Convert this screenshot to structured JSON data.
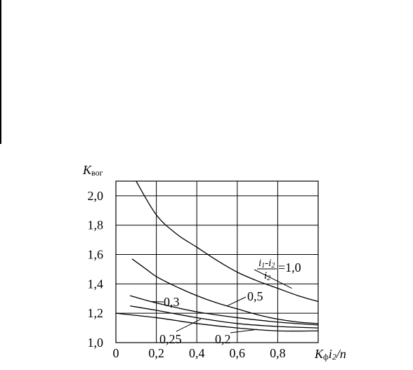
{
  "chart_data": {
    "type": "line",
    "ylabel_main": "K",
    "ylabel_sub": "вог",
    "xlabel": "Kфi2/n",
    "xlim": [
      0,
      1.0
    ],
    "ylim": [
      1.0,
      2.1
    ],
    "x_ticks": [
      0,
      0.2,
      0.4,
      0.6,
      0.8
    ],
    "x_tick_labels": [
      "0",
      "0,2",
      "0,4",
      "0,6",
      "0,8"
    ],
    "y_ticks": [
      1.0,
      1.2,
      1.4,
      1.6,
      1.8,
      2.0
    ],
    "y_tick_labels": [
      "1,0",
      "1,2",
      "1,4",
      "1,6",
      "1,8",
      "2,0"
    ],
    "grid": true,
    "annotation_fraction": {
      "numerator": "i1-i2",
      "denominator": "i2",
      "suffix": "=1,0"
    },
    "series": [
      {
        "name": "1,0",
        "x": [
          0.1,
          0.2,
          0.3,
          0.4,
          0.5,
          0.6,
          0.7,
          0.8,
          0.9,
          1.0
        ],
        "y": [
          2.1,
          1.87,
          1.74,
          1.65,
          1.56,
          1.48,
          1.42,
          1.37,
          1.32,
          1.28
        ]
      },
      {
        "name": "0,5",
        "x": [
          0.08,
          0.15,
          0.2,
          0.3,
          0.4,
          0.5,
          0.6,
          0.7,
          0.8,
          0.9,
          1.0
        ],
        "y": [
          1.57,
          1.5,
          1.45,
          1.38,
          1.32,
          1.27,
          1.23,
          1.19,
          1.16,
          1.14,
          1.13
        ]
      },
      {
        "name": "0,3",
        "x": [
          0.07,
          0.2,
          0.4,
          0.6,
          0.8,
          1.0
        ],
        "y": [
          1.32,
          1.27,
          1.21,
          1.17,
          1.14,
          1.12
        ]
      },
      {
        "name": "0,25",
        "x": [
          0.07,
          0.2,
          0.4,
          0.6,
          0.8,
          1.0
        ],
        "y": [
          1.25,
          1.22,
          1.17,
          1.13,
          1.11,
          1.1
        ]
      },
      {
        "name": "0,2",
        "x": [
          0.0,
          0.2,
          0.4,
          0.6,
          0.8,
          1.0
        ],
        "y": [
          1.2,
          1.17,
          1.13,
          1.1,
          1.08,
          1.08
        ]
      }
    ],
    "curve_labels": [
      "0,3",
      "0,5",
      "0,25",
      "0,2"
    ]
  }
}
